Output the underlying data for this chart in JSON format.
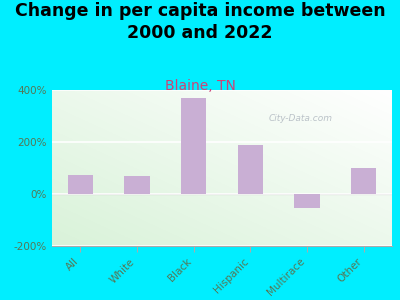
{
  "title": "Change in per capita income between\n2000 and 2022",
  "subtitle": "Blaine, TN",
  "categories": [
    "All",
    "White",
    "Black",
    "Hispanic",
    "Multirace",
    "Other"
  ],
  "values": [
    75,
    70,
    370,
    190,
    -55,
    100
  ],
  "bar_color": "#c9afd4",
  "title_fontsize": 12.5,
  "subtitle_fontsize": 10,
  "subtitle_color": "#cc4477",
  "tick_label_color": "#557755",
  "axis_label_color": "#557755",
  "background_outer": "#00eeff",
  "ylim": [
    -200,
    400
  ],
  "yticks": [
    -200,
    0,
    200,
    400
  ],
  "ytick_labels": [
    "-200%",
    "0%",
    "200%",
    "400%"
  ],
  "watermark": "City-Data.com"
}
